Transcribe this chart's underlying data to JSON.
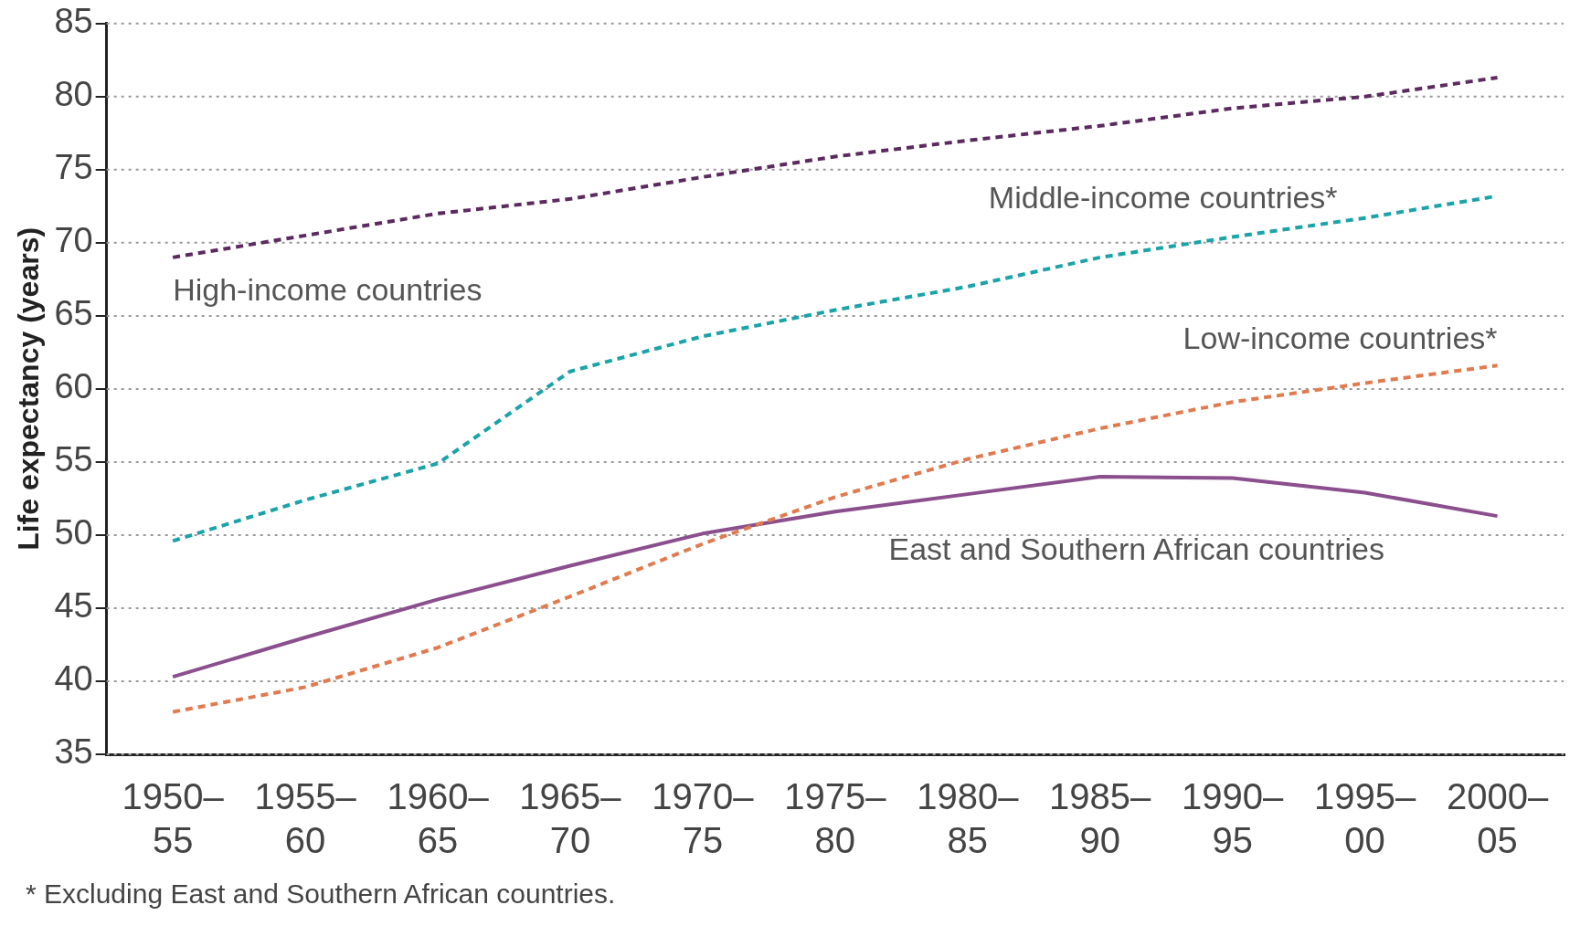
{
  "chart_data": {
    "type": "line",
    "ylabel": "Life expectancy (years)",
    "categories": [
      "1950–55",
      "1955–60",
      "1960–65",
      "1965–70",
      "1970–75",
      "1975–80",
      "1980–85",
      "1985–90",
      "1990–95",
      "1995–00",
      "2000–05"
    ],
    "series": [
      {
        "name": "High-income countries",
        "color": "#5b2a5e",
        "line_style": "dashed",
        "values": [
          69.0,
          70.5,
          72.0,
          73.0,
          74.5,
          75.9,
          77.0,
          78.0,
          79.2,
          80.0,
          81.3
        ]
      },
      {
        "name": "Middle-income countries*",
        "color": "#1aa3a8",
        "line_style": "dashed",
        "values": [
          49.6,
          52.4,
          54.9,
          61.2,
          63.6,
          65.4,
          67.0,
          69.0,
          70.4,
          71.7,
          73.2
        ]
      },
      {
        "name": "Low-income countries*",
        "color": "#e07b50",
        "line_style": "dashed",
        "values": [
          37.9,
          39.6,
          42.3,
          45.8,
          49.4,
          52.6,
          55.2,
          57.3,
          59.1,
          60.4,
          61.6
        ]
      },
      {
        "name": "East and Southern African countries",
        "color": "#8a4f8c",
        "line_style": "solid",
        "values": [
          40.3,
          43.0,
          45.6,
          47.9,
          50.1,
          51.6,
          52.8,
          54.0,
          53.9,
          52.9,
          51.3
        ]
      }
    ],
    "ylim": [
      35,
      85
    ],
    "yticks": [
      35,
      40,
      45,
      50,
      55,
      60,
      65,
      70,
      75,
      80,
      85
    ],
    "grid": "y",
    "legend": false,
    "marker": "none",
    "annotations": [
      "* Excluding East and Southern African countries."
    ]
  }
}
